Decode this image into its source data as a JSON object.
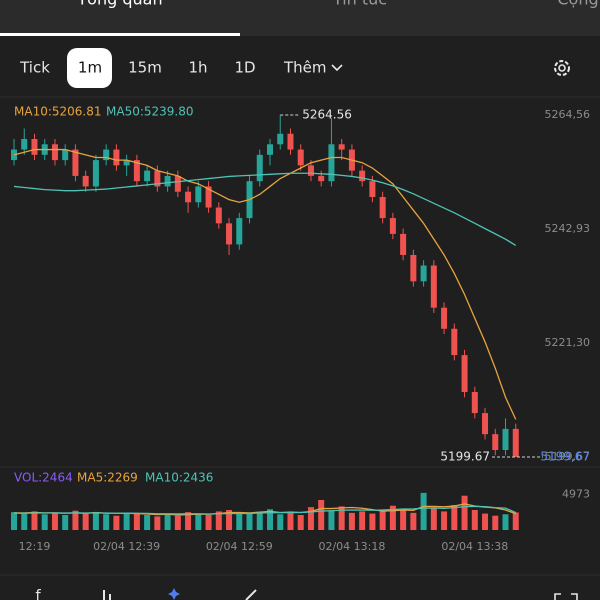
{
  "tabs": [
    "Tổng quan",
    "Tin tức",
    "Cộng"
  ],
  "timeframes": [
    "Tick",
    "1m",
    "15m",
    "1h",
    "1D"
  ],
  "more": "Thêm",
  "chart_data": {
    "type": "candlestick",
    "ma_legend": [
      "MA10:5206.81",
      "MA50:5239.80"
    ],
    "vol_legend": [
      "VOL:2464",
      "MA5:2269",
      "MA10:2436"
    ],
    "up_color": "#26a69a",
    "down_color": "#ef5350",
    "ylim": [
      5198.15,
      5269.3
    ],
    "yticks": [
      {
        "value": 5264.56,
        "label": "5264,56"
      },
      {
        "value": 5242.93,
        "label": "5242,93"
      },
      {
        "value": 5221.3,
        "label": "5221,30"
      },
      {
        "value": 5199.67,
        "label": "5199,67"
      }
    ],
    "high_label": 5264.56,
    "last_price": {
      "value": 5199.67,
      "label": "5199,67"
    },
    "categories": [
      null,
      null,
      "12:19",
      null,
      null,
      null,
      null,
      null,
      null,
      null,
      null,
      "02/04 12:39",
      null,
      null,
      null,
      null,
      null,
      null,
      null,
      null,
      null,
      null,
      "02/04 12:59",
      null,
      null,
      null,
      null,
      null,
      null,
      null,
      null,
      null,
      null,
      "02/04 13:18",
      null,
      null,
      null,
      null,
      null,
      null,
      null,
      null,
      null,
      null,
      null,
      "02/04 13:38",
      null,
      null,
      null,
      null
    ],
    "ohlc": [
      [
        5256,
        5260,
        5255,
        5258
      ],
      [
        5258,
        5262,
        5257,
        5260
      ],
      [
        5260,
        5261,
        5256,
        5257
      ],
      [
        5257,
        5260,
        5256,
        5259
      ],
      [
        5259,
        5260,
        5255,
        5256
      ],
      [
        5256,
        5259,
        5255,
        5258
      ],
      [
        5258,
        5259,
        5252,
        5253
      ],
      [
        5253,
        5254,
        5250,
        5251
      ],
      [
        5251,
        5257,
        5250,
        5256
      ],
      [
        5256,
        5259,
        5255,
        5258
      ],
      [
        5258,
        5259,
        5254,
        5255
      ],
      [
        5255,
        5257,
        5253,
        5256
      ],
      [
        5256,
        5257,
        5251,
        5252
      ],
      [
        5252,
        5255,
        5251,
        5254
      ],
      [
        5254,
        5255,
        5250,
        5251
      ],
      [
        5251,
        5254,
        5250,
        5253
      ],
      [
        5253,
        5254,
        5249,
        5250
      ],
      [
        5250,
        5251,
        5246,
        5248
      ],
      [
        5248,
        5252,
        5247,
        5251
      ],
      [
        5251,
        5252,
        5246,
        5247
      ],
      [
        5247,
        5248,
        5243,
        5244
      ],
      [
        5244,
        5245,
        5238,
        5240
      ],
      [
        5240,
        5246,
        5239,
        5245
      ],
      [
        5245,
        5253,
        5244,
        5252
      ],
      [
        5252,
        5258,
        5251,
        5257
      ],
      [
        5257,
        5260,
        5255,
        5259
      ],
      [
        5259,
        5264.56,
        5258,
        5261
      ],
      [
        5261,
        5262,
        5257,
        5258
      ],
      [
        5258,
        5259,
        5254,
        5255
      ],
      [
        5255,
        5256,
        5252,
        5253
      ],
      [
        5253,
        5254,
        5251,
        5252
      ],
      [
        5252,
        5264,
        5251,
        5259
      ],
      [
        5259,
        5260,
        5256,
        5258
      ],
      [
        5258,
        5259,
        5253,
        5254
      ],
      [
        5254,
        5255,
        5251,
        5252
      ],
      [
        5252,
        5253,
        5248,
        5249
      ],
      [
        5249,
        5250,
        5244,
        5245
      ],
      [
        5245,
        5246,
        5241,
        5242
      ],
      [
        5242,
        5243,
        5237,
        5238
      ],
      [
        5238,
        5239,
        5232,
        5233
      ],
      [
        5233,
        5237,
        5232,
        5236
      ],
      [
        5236,
        5237,
        5227,
        5228
      ],
      [
        5228,
        5229,
        5223,
        5224
      ],
      [
        5224,
        5225,
        5218,
        5219
      ],
      [
        5219,
        5220,
        5211,
        5212
      ],
      [
        5212,
        5213,
        5207,
        5208
      ],
      [
        5208,
        5209,
        5203,
        5204
      ],
      [
        5204,
        5205,
        5200,
        5201
      ],
      [
        5201,
        5207,
        5200,
        5205
      ],
      [
        5205,
        5206,
        5199.67,
        5199.67
      ]
    ],
    "series": [
      {
        "name": "MA10",
        "color": "#e8a33d",
        "values": [
          5257,
          5257.5,
          5258,
          5258,
          5258,
          5258,
          5257.5,
          5257,
          5256.5,
          5256.5,
          5256,
          5256,
          5255.5,
          5255,
          5254,
          5253.5,
          5253,
          5252,
          5251.5,
          5250.5,
          5249.5,
          5248.5,
          5248,
          5248.5,
          5249.5,
          5251,
          5252.5,
          5253.5,
          5254.5,
          5255.5,
          5256,
          5256.5,
          5256.5,
          5256,
          5255.5,
          5254.5,
          5253,
          5251.5,
          5249,
          5246.5,
          5244,
          5241,
          5238,
          5234.5,
          5230.5,
          5226,
          5221.5,
          5216.5,
          5211,
          5206.81
        ]
      },
      {
        "name": "MA50",
        "color": "#4fc3b5",
        "values": [
          5251,
          5250.8,
          5250.6,
          5250.4,
          5250.3,
          5250.2,
          5250.2,
          5250.3,
          5250.4,
          5250.5,
          5250.7,
          5250.9,
          5251.1,
          5251.3,
          5251.5,
          5251.7,
          5251.9,
          5252.1,
          5252.3,
          5252.5,
          5252.7,
          5252.9,
          5253,
          5253.1,
          5253.2,
          5253.3,
          5253.4,
          5253.5,
          5253.5,
          5253.5,
          5253.4,
          5253.3,
          5253.1,
          5252.9,
          5252.6,
          5252.2,
          5251.7,
          5251.1,
          5250.4,
          5249.6,
          5248.7,
          5247.8,
          5246.9,
          5246,
          5245,
          5244,
          5243,
          5242,
          5241,
          5239.8
        ]
      }
    ],
    "vol_ylim": [
      0,
      7000
    ],
    "vol_yticks": [
      4973
    ],
    "volume": [
      2500,
      2300,
      2600,
      2200,
      2400,
      2100,
      2700,
      2300,
      2500,
      2200,
      2000,
      2400,
      2300,
      2100,
      1900,
      2200,
      2000,
      2500,
      2300,
      2100,
      2600,
      2800,
      2400,
      2300,
      2500,
      2900,
      2200,
      2600,
      2100,
      3200,
      4200,
      2700,
      3300,
      2400,
      2600,
      2300,
      2700,
      3400,
      2900,
      2400,
      5200,
      3100,
      2600,
      3500,
      4800,
      2800,
      2300,
      2000,
      2200,
      2464
    ],
    "vol_series": [
      {
        "name": "MA5",
        "color": "#e8a33d",
        "values": [
          2400,
          2400,
          2450,
          2400,
          2400,
          2350,
          2400,
          2350,
          2450,
          2350,
          2350,
          2350,
          2300,
          2250,
          2150,
          2200,
          2100,
          2150,
          2200,
          2200,
          2300,
          2450,
          2450,
          2400,
          2500,
          2600,
          2450,
          2500,
          2450,
          2600,
          3000,
          3000,
          3100,
          3150,
          3050,
          2850,
          2650,
          2700,
          2800,
          2750,
          3300,
          3300,
          3250,
          3350,
          3650,
          3350,
          3200,
          3100,
          2800,
          2269
        ]
      },
      {
        "name": "MA10",
        "color": "#4fc3b5",
        "values": [
          2350,
          2350,
          2380,
          2380,
          2390,
          2380,
          2390,
          2380,
          2400,
          2380,
          2350,
          2360,
          2340,
          2320,
          2280,
          2280,
          2250,
          2270,
          2270,
          2240,
          2270,
          2300,
          2310,
          2320,
          2380,
          2420,
          2430,
          2440,
          2450,
          2520,
          2650,
          2700,
          2780,
          2790,
          2800,
          2760,
          2800,
          2860,
          2940,
          2960,
          3050,
          3090,
          3030,
          3140,
          3260,
          3310,
          3270,
          3130,
          3060,
          2436
        ]
      }
    ]
  }
}
